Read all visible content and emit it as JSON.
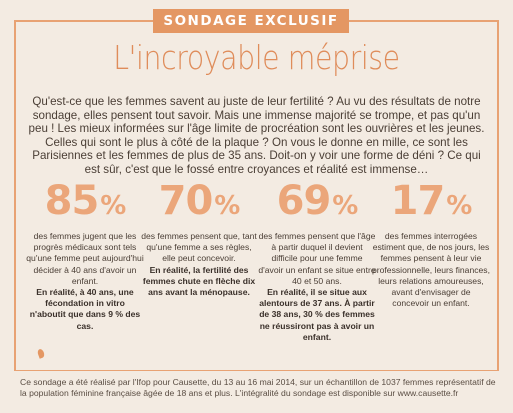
{
  "badge": "SONDAGE EXCLUSIF",
  "title": "L'incroyable méprise",
  "intro": "Qu'est-ce que les femmes savent au juste de leur fertilité ? Au vu des résultats de notre sondage, elles pensent tout savoir. Mais une immense majorité se trompe, et pas qu'un peu ! Les mieux informées sur l'âge limite de procréation sont les ouvrières et les jeunes. Celles qui sont le plus à côté de la plaque ? On vous le donne en mille, ce sont les Parisiennes et les femmes de plus de 35 ans. Doit-on y voir une forme de déni ? Ce qui est sûr, c'est que le fossé entre croyances et réalité est immense…",
  "stats": [
    {
      "value": "85",
      "unit": "%",
      "text": "des femmes jugent que les progrès médicaux sont tels qu'une femme peut aujourd'hui décider à 40 ans d'avoir un enfant.",
      "bold": "En réalité, à 40 ans, une fécondation in vitro n'aboutit que dans 9 % des cas."
    },
    {
      "value": "70",
      "unit": "%",
      "text": "des femmes pensent que, tant qu'une femme a ses règles, elle peut concevoir.",
      "bold": "En réalité, la fertilité des femmes chute en flèche dix ans avant la ménopause."
    },
    {
      "value": "69",
      "unit": "%",
      "text": "des femmes pensent que l'âge à partir duquel il devient difficile pour une femme d'avoir un enfant se situe entre 40 et 50 ans.",
      "bold": "En réalité, il se situe aux alentours de 37 ans. À partir de 38 ans, 30 % des femmes ne réussiront pas à avoir un enfant."
    },
    {
      "value": "17",
      "unit": "%",
      "text": "des femmes interrogées estiment que, de nos jours, les femmes pensent à leur vie professionnelle, leurs finances, leurs relations amoureuses, avant d'envisager de concevoir un enfant.",
      "bold": ""
    }
  ],
  "footer": "Ce sondage a été réalisé par l'Ifop pour Causette, du 13 au 16 mai 2014, sur un échantillon de 1037 femmes représentatif de la population féminine française âgée de 18 ans et plus. L'intégralité du sondage est disponible sur www.causette.fr",
  "colors": {
    "accent": "#e49763",
    "title": "#df8c5a",
    "percent": "#eba67a",
    "background": "#f3ebe2"
  }
}
